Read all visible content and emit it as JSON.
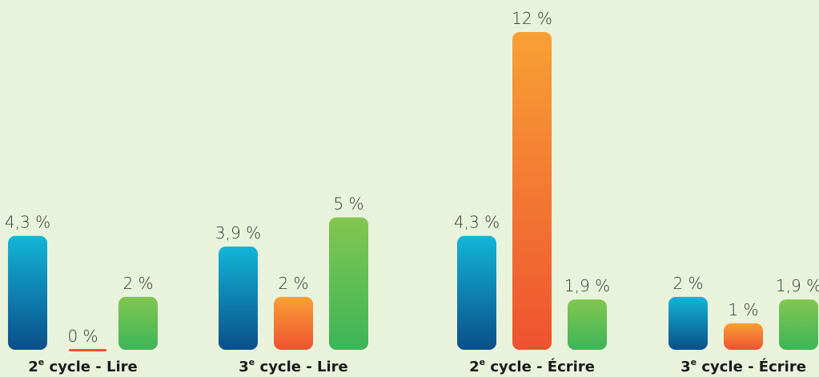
{
  "chart_data": {
    "type": "bar",
    "categories": [
      {
        "num": "2",
        "sup": "e",
        "rest": " cycle - Lire"
      },
      {
        "num": "3",
        "sup": "e",
        "rest": " cycle - Lire"
      },
      {
        "num": "2",
        "sup": "e",
        "rest": " cycle - Écrire"
      },
      {
        "num": "3",
        "sup": "e",
        "rest": " cycle - Écrire"
      }
    ],
    "series": [
      {
        "values": [
          4.3,
          3.9,
          4.3,
          2.0
        ],
        "labels": [
          "4,3 %",
          "3,9 %",
          "4,3 %",
          "2 %"
        ],
        "gradient": [
          "#13b5d8",
          "#0a4f8a"
        ]
      },
      {
        "values": [
          0,
          2.0,
          12.0,
          1.0
        ],
        "labels": [
          "0 %",
          "2 %",
          "12 %",
          "1 %"
        ],
        "gradient": [
          "#f8a035",
          "#ee5230"
        ]
      },
      {
        "values": [
          2.0,
          5.0,
          1.9,
          1.9
        ],
        "labels": [
          "2 %",
          "5 %",
          "1,9 %",
          "1,9 %"
        ],
        "gradient": [
          "#82c650",
          "#3cb557"
        ]
      }
    ],
    "ylim": [
      0,
      12
    ],
    "grid": false,
    "legend": "none",
    "background": "#e9f3dc"
  }
}
